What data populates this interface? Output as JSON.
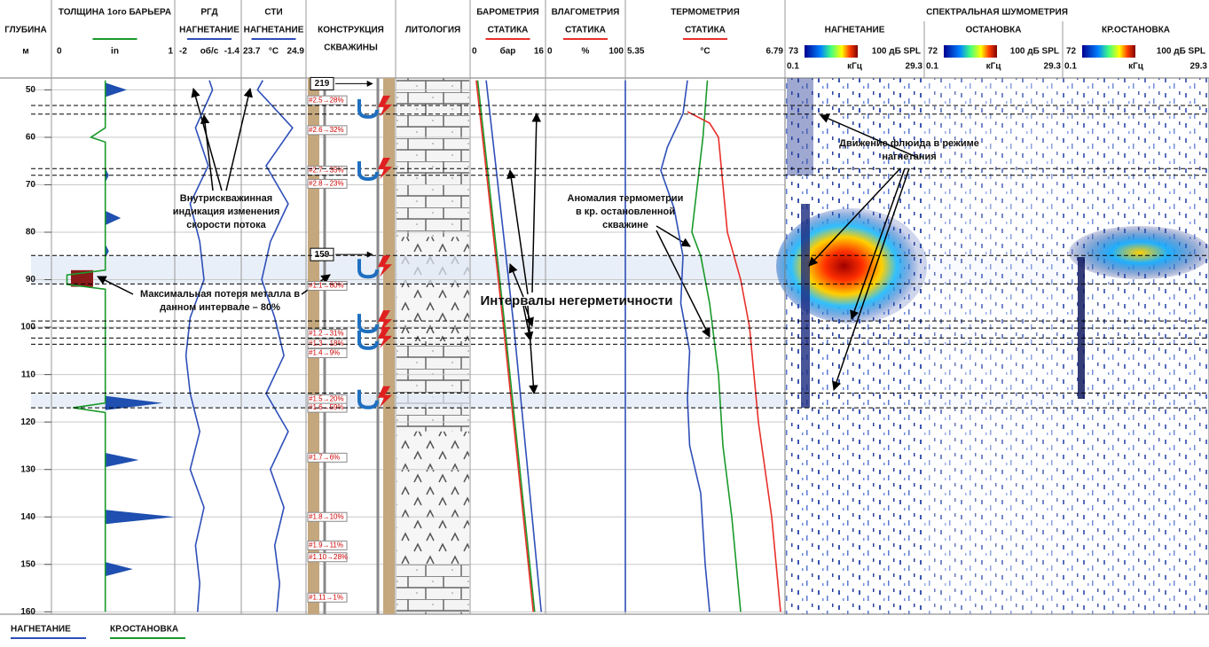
{
  "depth_track": {
    "title": "ГЛУБИНА",
    "unit": "м",
    "lim": [
      47.5,
      160.5
    ],
    "ticks": [
      50,
      60,
      70,
      80,
      90,
      100,
      110,
      120,
      130,
      140,
      150,
      160
    ]
  },
  "tracks": [
    {
      "header": [
        "ТОЛЩИНА 1ого БАРЬЕРА"
      ],
      "header_color": "#1a9a2a",
      "scale": {
        "min": 0,
        "unit": "in",
        "max": 1
      }
    },
    {
      "header": [
        "РГД",
        "НАГНЕТАНИЕ"
      ],
      "header_color": "#2e4fb8",
      "scale": {
        "min": -2,
        "unit": "об/с",
        "max": -1.4
      }
    },
    {
      "header": [
        "СТИ",
        "НАГНЕТАНИЕ"
      ],
      "header_color": "#2e4fb8",
      "scale": {
        "min": 23.7,
        "unit": "°C",
        "max": 24.9
      }
    },
    {
      "header": [
        "КОНСТРУКЦИЯ",
        "СКВАЖИНЫ"
      ]
    },
    {
      "header": [
        "ЛИТОЛОГИЯ"
      ]
    },
    {
      "header": [
        "БАРОМЕТРИЯ",
        "СТАТИКА"
      ],
      "header_color": "#e8302a",
      "scale": {
        "min": 0,
        "unit": "бар",
        "max": 16
      }
    },
    {
      "header": [
        "ВЛАГОМЕТРИЯ",
        "СТАТИКА"
      ],
      "header_color": "#e8302a",
      "scale": {
        "min": 0,
        "unit": "%",
        "max": 100
      }
    },
    {
      "header": [
        "ТЕРМОМЕТРИЯ",
        "СТАТИКА"
      ],
      "header_color": "#e8302a",
      "scale": {
        "min": 5.35,
        "unit": "°C",
        "max": 6.79
      }
    }
  ],
  "curves": [
    {
      "track": 0,
      "color": "#1a9a2a",
      "depth": [
        48,
        58,
        60,
        61,
        88,
        89,
        91,
        92,
        116,
        117,
        118,
        160
      ],
      "values": [
        0.42,
        0.42,
        0.3,
        0.42,
        0.42,
        0.1,
        0.1,
        0.42,
        0.42,
        0.15,
        0.42,
        0.42
      ]
    },
    {
      "track": 1,
      "color": "#2e4fb8",
      "depth": [
        48,
        50,
        58,
        66,
        74,
        82,
        90,
        98,
        106,
        114,
        122,
        130,
        138,
        146,
        154,
        160
      ],
      "values": [
        -1.7,
        -1.67,
        -1.83,
        -1.71,
        -1.88,
        -1.79,
        -1.75,
        -1.88,
        -1.92,
        -1.88,
        -1.79,
        -1.88,
        -1.75,
        -1.83,
        -1.79,
        -1.81
      ]
    },
    {
      "track": 2,
      "color": "#2e4fb8",
      "depth": [
        48,
        50,
        58,
        66,
        74,
        82,
        90,
        98,
        106,
        114,
        122,
        130,
        138,
        146,
        154,
        160
      ],
      "values": [
        24.1,
        24.0,
        24.65,
        24.16,
        24.57,
        24.24,
        24.08,
        24.32,
        24.49,
        24.16,
        24.57,
        24.24,
        24.49,
        24.32,
        24.41,
        24.36
      ]
    },
    {
      "track": 5,
      "color": "#1a9a2a",
      "depth": [
        48,
        100,
        160
      ],
      "values": [
        1.6,
        7.4,
        13.7
      ]
    },
    {
      "track": 5,
      "color": "#e8302a",
      "depth": [
        48,
        100,
        160
      ],
      "values": [
        1.3,
        7.1,
        13.4
      ]
    },
    {
      "track": 5,
      "color": "#2e4fb8",
      "depth": [
        48,
        100,
        160
      ],
      "values": [
        3.4,
        9.3,
        15.1
      ]
    },
    {
      "track": 6,
      "color": "#2e4fb8",
      "depth": [
        48,
        160
      ],
      "values": [
        100,
        100
      ]
    },
    {
      "track": 7,
      "color": "#2e4fb8",
      "depth": [
        48,
        55,
        62,
        67,
        75,
        85,
        95,
        105,
        115,
        125,
        135,
        150,
        160
      ],
      "values": [
        5.91,
        5.87,
        5.73,
        5.67,
        5.79,
        5.87,
        5.85,
        5.93,
        5.91,
        5.93,
        6.03,
        6.07,
        6.11
      ]
    },
    {
      "track": 7,
      "color": "#1a9a2a",
      "depth": [
        48,
        60,
        80,
        85,
        95,
        110,
        125,
        140,
        160
      ],
      "values": [
        6.09,
        6.05,
        5.95,
        6.03,
        6.11,
        6.19,
        6.23,
        6.31,
        6.39
      ]
    },
    {
      "track": 7,
      "color": "#e8302a",
      "depth": [
        54.6,
        57,
        60,
        70,
        80,
        90,
        100,
        120,
        140,
        160
      ],
      "values": [
        5.91,
        6.11,
        6.19,
        6.23,
        6.27,
        6.39,
        6.47,
        6.55,
        6.67,
        6.75
      ]
    }
  ],
  "thickness_peaks": {
    "depth": [
      50,
      68,
      77,
      84,
      116,
      128,
      140,
      151
    ],
    "values": [
      0.6,
      0.45,
      0.55,
      0.45,
      0.9,
      0.7,
      1.0,
      0.65
    ]
  },
  "intervals": [
    {
      "top": 53.3,
      "bottom": 55.1,
      "shaded": false
    },
    {
      "top": 66.6,
      "bottom": 68.0,
      "shaded": false
    },
    {
      "top": 84.9,
      "bottom": 90.9,
      "shaded": true
    },
    {
      "top": 98.7,
      "bottom": 100.2,
      "shaded": false
    },
    {
      "top": 102.3,
      "bottom": 103.6,
      "shaded": false
    },
    {
      "top": 113.9,
      "bottom": 117.0,
      "shaded": true
    }
  ],
  "construction": {
    "boxes": [
      {
        "label": 219,
        "depth": 48.7
      },
      {
        "label": 159,
        "depth": 84.7
      }
    ],
    "labels": [
      {
        "text": "#2.5→28%",
        "depth": 52.2
      },
      {
        "text": "#2.6→32%",
        "depth": 58.5
      },
      {
        "text": "#2.7→35%",
        "depth": 67
      },
      {
        "text": "#2.8→23%",
        "depth": 69.8
      },
      {
        "text": "#1.1→80%",
        "depth": 91.3
      },
      {
        "text": "#1.2→31%",
        "depth": 101.4
      },
      {
        "text": "#1.3→18%",
        "depth": 103.5
      },
      {
        "text": "#1.4→9%",
        "depth": 105.5
      },
      {
        "text": "#1.5→20%",
        "depth": 115.2
      },
      {
        "text": "#1.6→59%",
        "depth": 117
      },
      {
        "text": "#1.7→6%",
        "depth": 127.5
      },
      {
        "text": "#1.8→10%",
        "depth": 140
      },
      {
        "text": "#1.9→11%",
        "depth": 146
      },
      {
        "text": "#1.10→28%",
        "depth": 148.5
      },
      {
        "text": "#1.11→1%",
        "depth": 157
      }
    ]
  },
  "lithology": [
    {
      "top": 47.5,
      "bottom": 81,
      "kind": "brick"
    },
    {
      "top": 81,
      "bottom": 103,
      "kind": "chevron"
    },
    {
      "top": 103,
      "bottom": 122,
      "kind": "brick"
    },
    {
      "top": 122,
      "bottom": 150,
      "kind": "chevron"
    },
    {
      "top": 150,
      "bottom": 160.5,
      "kind": "brick"
    }
  ],
  "spectral": {
    "title": "СПЕКТРАЛЬНАЯ ШУМОМЕТРИЯ",
    "panels": [
      {
        "title": "НАГНЕТАНИЕ",
        "db_min": 73,
        "db_max": "100 дБ SPL",
        "f_min": 0.1,
        "f_unit": "кГц",
        "f_max": 29.3
      },
      {
        "title": "ОСТАНОВКА",
        "db_min": 72,
        "db_max": "100 дБ SPL",
        "f_min": 0.1,
        "f_unit": "кГц",
        "f_max": 29.3
      },
      {
        "title": "КР.ОСТАНОВКА",
        "db_min": 72,
        "db_max": "100 дБ SPL",
        "f_min": 0.1,
        "f_unit": "кГц",
        "f_max": 29.3
      }
    ]
  },
  "annotations": {
    "flow": [
      "Внутрискважинная",
      "индикация изменения",
      "скорости потока"
    ],
    "metal": [
      "Максимальная потеря металла в",
      "данном интервале – 80%"
    ],
    "leaks": "Интервалы негерметичности",
    "thermo": [
      "Аномалия термометрии",
      "в кр. остановленной",
      "скважине"
    ],
    "fluid": [
      "Движение флюида в режиме",
      "нагнетания"
    ]
  },
  "legend": [
    {
      "name": "НАГНЕТАНИЕ",
      "color": "#2e4fb8"
    },
    {
      "name": "КР.ОСТАНОВКА",
      "color": "#1a9a2a"
    }
  ]
}
